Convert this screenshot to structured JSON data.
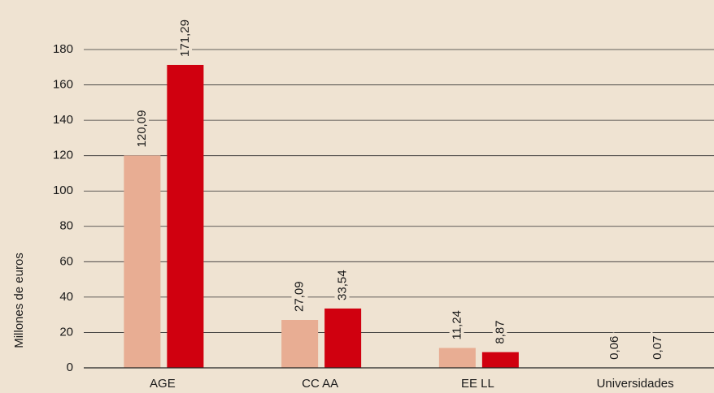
{
  "chart_data": {
    "type": "bar",
    "y_label": "Millones de euros",
    "categories": [
      "AGE",
      "CC AA",
      "EE LL",
      "Universidades"
    ],
    "series": [
      {
        "color": "#e8ad93",
        "values": [
          120.09,
          27.09,
          11.24,
          0.06
        ],
        "value_labels": [
          "120,09",
          "27,09",
          "11,24",
          "0,06"
        ]
      },
      {
        "color": "#d0000f",
        "values": [
          171.29,
          33.54,
          8.87,
          0.07
        ],
        "value_labels": [
          "171,29",
          "33,54",
          "8,87",
          "0,07"
        ]
      }
    ],
    "ylim": [
      0,
      180
    ],
    "yticks": [
      0,
      20,
      40,
      60,
      80,
      100,
      120,
      140,
      160,
      180
    ],
    "grid": true
  }
}
